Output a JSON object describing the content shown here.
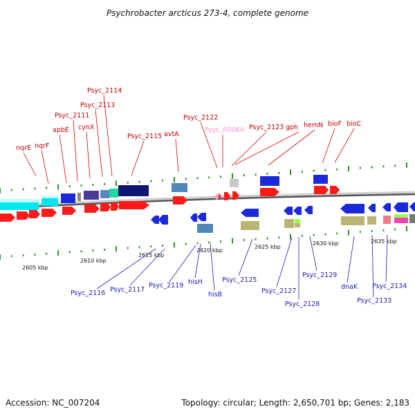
{
  "title": "Psychrobacter arcticus 273-4, complete genome",
  "footer": {
    "accession": "Accession: NC_007204",
    "summary": "Topology: circular; Length: 2,650,701 bp; Genes: 2,183"
  },
  "colors": {
    "cds_forward": "#ff1a1a",
    "cds_reverse": "#1a2adb",
    "rna": "#ff9ad0",
    "backbone": "#7a7a7a",
    "tick": "#2f8f2f",
    "top_label": "#c00000",
    "bottom_label": "#1a1ab4"
  },
  "scale_labels": [
    "2605 kbp",
    "2610 kbp",
    "2615 kbp",
    "2620 kbp",
    "2625 kbp",
    "2630 kbp",
    "2635 kbp"
  ],
  "top_labels": [
    {
      "text": "nqrE"
    },
    {
      "text": "nqrF"
    },
    {
      "text": "apbE"
    },
    {
      "text": "Psyc_2111"
    },
    {
      "text": "cynX"
    },
    {
      "text": "Psyc_2113"
    },
    {
      "text": "Psyc_2114"
    },
    {
      "text": "Psyc_2115"
    },
    {
      "text": "avtA"
    },
    {
      "text": "Psyc_2122"
    },
    {
      "text": "Psyc_R0064",
      "rna": true
    },
    {
      "text": "Psyc_2123"
    },
    {
      "text": "gph"
    },
    {
      "text": "hemN"
    },
    {
      "text": "bioF"
    },
    {
      "text": "bioC"
    }
  ],
  "bottom_labels": [
    {
      "text": "Psyc_2116"
    },
    {
      "text": "Psyc_2117"
    },
    {
      "text": "Psyc_2119"
    },
    {
      "text": "hisH"
    },
    {
      "text": "hisB"
    },
    {
      "text": "Psyc_2125"
    },
    {
      "text": "Psyc_2127"
    },
    {
      "text": "Psyc_2128"
    },
    {
      "text": "Psyc_2129"
    },
    {
      "text": "dnaK"
    },
    {
      "text": "Psyc_2133"
    },
    {
      "text": "Psyc_2134"
    }
  ]
}
